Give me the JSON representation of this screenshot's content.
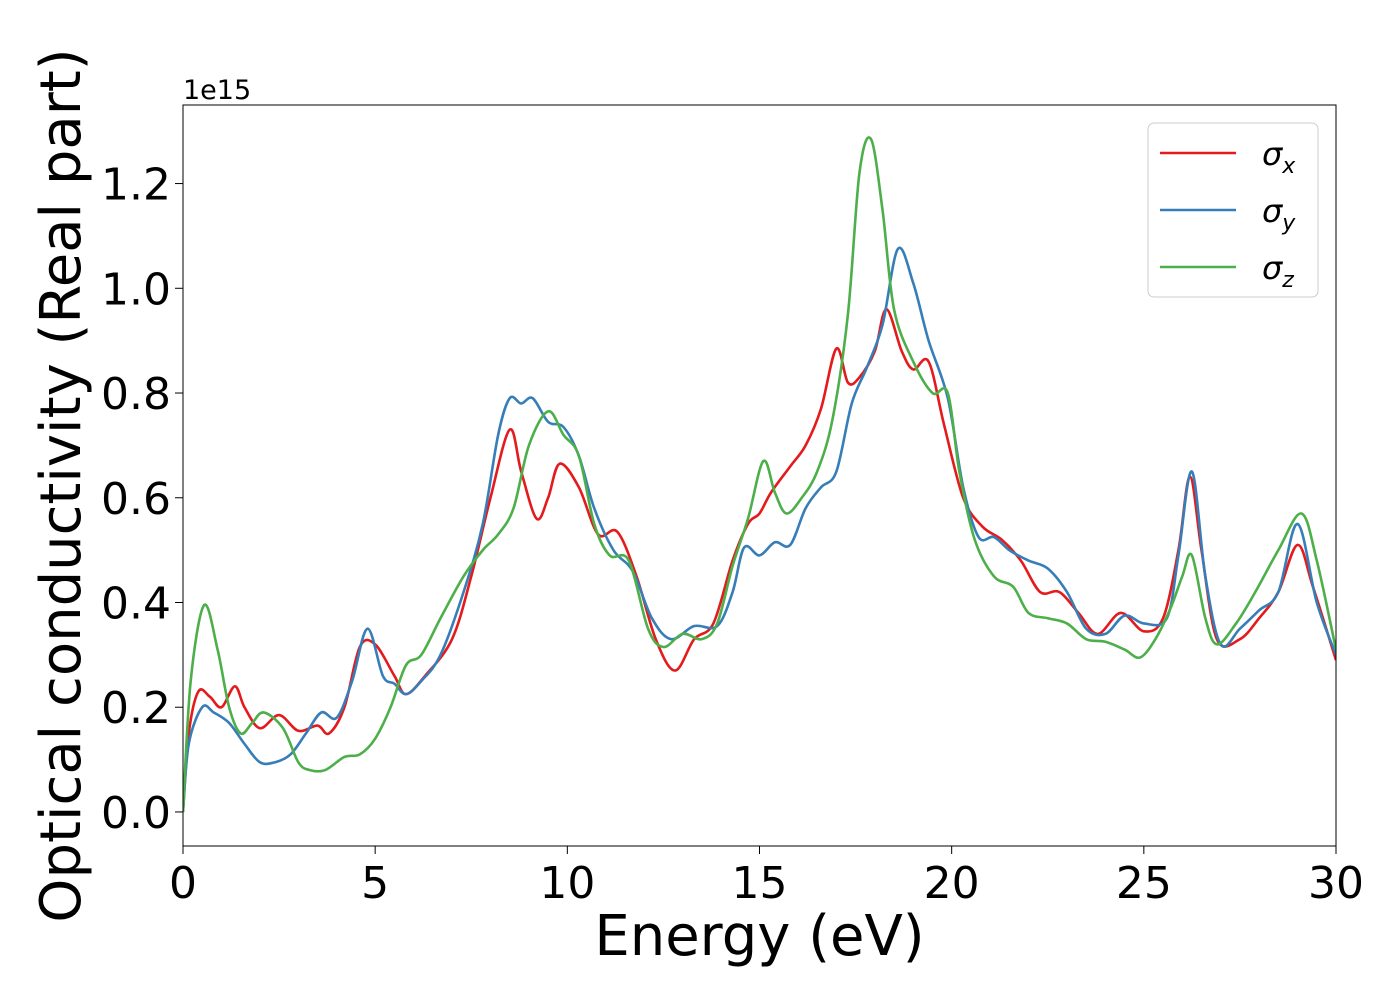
{
  "chart_data": {
    "type": "line",
    "xlabel": "Energy (eV)",
    "ylabel": "Optical conductivity (Real part)",
    "y_offset_text": "1e15",
    "xlim": [
      0,
      30
    ],
    "ylim": [
      -0.065,
      1.35
    ],
    "x_ticks": [
      0,
      5,
      10,
      15,
      20,
      25,
      30
    ],
    "y_ticks": [
      0.0,
      0.2,
      0.4,
      0.6,
      0.8,
      1.0,
      1.2
    ],
    "x_tick_labels": [
      "0",
      "5",
      "10",
      "15",
      "20",
      "25",
      "30"
    ],
    "y_tick_labels": [
      "0.0",
      "0.2",
      "0.4",
      "0.6",
      "0.8",
      "1.0",
      "1.2"
    ],
    "grid": false,
    "legend_position": "top-right",
    "series": [
      {
        "name": "σx",
        "symbol": "σ",
        "subscript": "x",
        "color": "#e41a1c",
        "points": [
          [
            0,
            0
          ],
          [
            0.15,
            0.15
          ],
          [
            0.4,
            0.23
          ],
          [
            0.7,
            0.22
          ],
          [
            1.0,
            0.2
          ],
          [
            1.35,
            0.24
          ],
          [
            1.6,
            0.2
          ],
          [
            2.0,
            0.16
          ],
          [
            2.5,
            0.185
          ],
          [
            3.0,
            0.155
          ],
          [
            3.5,
            0.165
          ],
          [
            3.8,
            0.15
          ],
          [
            4.2,
            0.2
          ],
          [
            4.6,
            0.315
          ],
          [
            5.0,
            0.32
          ],
          [
            5.5,
            0.26
          ],
          [
            5.8,
            0.225
          ],
          [
            6.3,
            0.26
          ],
          [
            7.0,
            0.33
          ],
          [
            7.5,
            0.45
          ],
          [
            8.0,
            0.6
          ],
          [
            8.5,
            0.73
          ],
          [
            8.8,
            0.65
          ],
          [
            9.2,
            0.56
          ],
          [
            9.5,
            0.6
          ],
          [
            9.8,
            0.665
          ],
          [
            10.3,
            0.62
          ],
          [
            10.8,
            0.53
          ],
          [
            11.3,
            0.535
          ],
          [
            11.8,
            0.45
          ],
          [
            12.3,
            0.33
          ],
          [
            12.8,
            0.27
          ],
          [
            13.3,
            0.33
          ],
          [
            13.8,
            0.36
          ],
          [
            14.3,
            0.48
          ],
          [
            14.7,
            0.55
          ],
          [
            15.0,
            0.57
          ],
          [
            15.3,
            0.61
          ],
          [
            15.8,
            0.66
          ],
          [
            16.2,
            0.7
          ],
          [
            16.6,
            0.77
          ],
          [
            17.0,
            0.885
          ],
          [
            17.3,
            0.82
          ],
          [
            17.6,
            0.83
          ],
          [
            18.0,
            0.88
          ],
          [
            18.3,
            0.96
          ],
          [
            18.7,
            0.88
          ],
          [
            19.0,
            0.845
          ],
          [
            19.4,
            0.86
          ],
          [
            19.8,
            0.74
          ],
          [
            20.3,
            0.6
          ],
          [
            20.8,
            0.545
          ],
          [
            21.3,
            0.52
          ],
          [
            21.8,
            0.48
          ],
          [
            22.3,
            0.42
          ],
          [
            22.8,
            0.42
          ],
          [
            23.3,
            0.38
          ],
          [
            23.8,
            0.34
          ],
          [
            24.4,
            0.38
          ],
          [
            25.0,
            0.345
          ],
          [
            25.5,
            0.37
          ],
          [
            25.9,
            0.5
          ],
          [
            26.2,
            0.64
          ],
          [
            26.5,
            0.5
          ],
          [
            26.9,
            0.33
          ],
          [
            27.5,
            0.33
          ],
          [
            28.0,
            0.37
          ],
          [
            28.5,
            0.42
          ],
          [
            29.0,
            0.51
          ],
          [
            29.4,
            0.43
          ],
          [
            30.0,
            0.29
          ]
        ]
      },
      {
        "name": "σy",
        "symbol": "σ",
        "subscript": "y",
        "color": "#377eb8",
        "points": [
          [
            0,
            0
          ],
          [
            0.15,
            0.13
          ],
          [
            0.5,
            0.2
          ],
          [
            0.8,
            0.19
          ],
          [
            1.2,
            0.17
          ],
          [
            1.6,
            0.13
          ],
          [
            2.0,
            0.095
          ],
          [
            2.4,
            0.095
          ],
          [
            2.8,
            0.11
          ],
          [
            3.2,
            0.15
          ],
          [
            3.6,
            0.19
          ],
          [
            4.0,
            0.18
          ],
          [
            4.4,
            0.25
          ],
          [
            4.8,
            0.35
          ],
          [
            5.2,
            0.26
          ],
          [
            5.5,
            0.245
          ],
          [
            5.8,
            0.225
          ],
          [
            6.2,
            0.25
          ],
          [
            6.7,
            0.3
          ],
          [
            7.3,
            0.42
          ],
          [
            7.8,
            0.55
          ],
          [
            8.2,
            0.72
          ],
          [
            8.5,
            0.79
          ],
          [
            8.8,
            0.78
          ],
          [
            9.1,
            0.79
          ],
          [
            9.5,
            0.745
          ],
          [
            9.9,
            0.735
          ],
          [
            10.3,
            0.68
          ],
          [
            10.7,
            0.58
          ],
          [
            11.2,
            0.5
          ],
          [
            11.7,
            0.46
          ],
          [
            12.2,
            0.37
          ],
          [
            12.7,
            0.33
          ],
          [
            13.3,
            0.355
          ],
          [
            13.9,
            0.355
          ],
          [
            14.3,
            0.42
          ],
          [
            14.6,
            0.505
          ],
          [
            15.0,
            0.49
          ],
          [
            15.4,
            0.515
          ],
          [
            15.8,
            0.51
          ],
          [
            16.2,
            0.58
          ],
          [
            16.6,
            0.62
          ],
          [
            17.0,
            0.65
          ],
          [
            17.4,
            0.78
          ],
          [
            17.8,
            0.85
          ],
          [
            18.2,
            0.93
          ],
          [
            18.6,
            1.075
          ],
          [
            19.0,
            1.01
          ],
          [
            19.4,
            0.9
          ],
          [
            19.9,
            0.79
          ],
          [
            20.3,
            0.62
          ],
          [
            20.7,
            0.525
          ],
          [
            21.1,
            0.525
          ],
          [
            21.5,
            0.5
          ],
          [
            22.0,
            0.48
          ],
          [
            22.5,
            0.465
          ],
          [
            23.0,
            0.42
          ],
          [
            23.5,
            0.35
          ],
          [
            24.0,
            0.34
          ],
          [
            24.5,
            0.375
          ],
          [
            25.0,
            0.36
          ],
          [
            25.6,
            0.37
          ],
          [
            25.9,
            0.49
          ],
          [
            26.25,
            0.65
          ],
          [
            26.6,
            0.45
          ],
          [
            27.0,
            0.32
          ],
          [
            27.5,
            0.35
          ],
          [
            28.0,
            0.385
          ],
          [
            28.5,
            0.42
          ],
          [
            29.0,
            0.55
          ],
          [
            29.5,
            0.4
          ],
          [
            30.0,
            0.3
          ]
        ]
      },
      {
        "name": "σz",
        "symbol": "σ",
        "subscript": "z",
        "color": "#4daf4a",
        "points": [
          [
            0,
            0
          ],
          [
            0.2,
            0.25
          ],
          [
            0.55,
            0.395
          ],
          [
            0.9,
            0.31
          ],
          [
            1.2,
            0.2
          ],
          [
            1.5,
            0.15
          ],
          [
            1.8,
            0.17
          ],
          [
            2.1,
            0.19
          ],
          [
            2.6,
            0.16
          ],
          [
            3.0,
            0.095
          ],
          [
            3.3,
            0.08
          ],
          [
            3.7,
            0.08
          ],
          [
            4.2,
            0.105
          ],
          [
            4.6,
            0.11
          ],
          [
            5.0,
            0.14
          ],
          [
            5.4,
            0.2
          ],
          [
            5.8,
            0.28
          ],
          [
            6.2,
            0.3
          ],
          [
            6.7,
            0.37
          ],
          [
            7.3,
            0.45
          ],
          [
            7.8,
            0.5
          ],
          [
            8.2,
            0.53
          ],
          [
            8.6,
            0.58
          ],
          [
            9.0,
            0.7
          ],
          [
            9.5,
            0.765
          ],
          [
            9.9,
            0.72
          ],
          [
            10.3,
            0.68
          ],
          [
            10.7,
            0.55
          ],
          [
            11.1,
            0.49
          ],
          [
            11.6,
            0.48
          ],
          [
            12.1,
            0.35
          ],
          [
            12.5,
            0.315
          ],
          [
            13.0,
            0.34
          ],
          [
            13.5,
            0.33
          ],
          [
            13.9,
            0.36
          ],
          [
            14.3,
            0.47
          ],
          [
            14.7,
            0.56
          ],
          [
            15.1,
            0.67
          ],
          [
            15.4,
            0.61
          ],
          [
            15.7,
            0.57
          ],
          [
            16.1,
            0.6
          ],
          [
            16.5,
            0.65
          ],
          [
            16.9,
            0.75
          ],
          [
            17.3,
            0.95
          ],
          [
            17.6,
            1.22
          ],
          [
            17.9,
            1.285
          ],
          [
            18.2,
            1.15
          ],
          [
            18.5,
            0.96
          ],
          [
            19.0,
            0.86
          ],
          [
            19.5,
            0.8
          ],
          [
            19.9,
            0.8
          ],
          [
            20.2,
            0.65
          ],
          [
            20.6,
            0.52
          ],
          [
            21.1,
            0.45
          ],
          [
            21.6,
            0.43
          ],
          [
            22.0,
            0.38
          ],
          [
            22.5,
            0.37
          ],
          [
            23.0,
            0.36
          ],
          [
            23.5,
            0.33
          ],
          [
            24.0,
            0.325
          ],
          [
            24.5,
            0.31
          ],
          [
            24.9,
            0.295
          ],
          [
            25.3,
            0.33
          ],
          [
            25.7,
            0.39
          ],
          [
            26.0,
            0.45
          ],
          [
            26.25,
            0.49
          ],
          [
            26.6,
            0.37
          ],
          [
            26.9,
            0.32
          ],
          [
            27.4,
            0.36
          ],
          [
            27.9,
            0.42
          ],
          [
            28.5,
            0.5
          ],
          [
            29.1,
            0.57
          ],
          [
            29.5,
            0.48
          ],
          [
            30.0,
            0.31
          ]
        ]
      }
    ]
  }
}
